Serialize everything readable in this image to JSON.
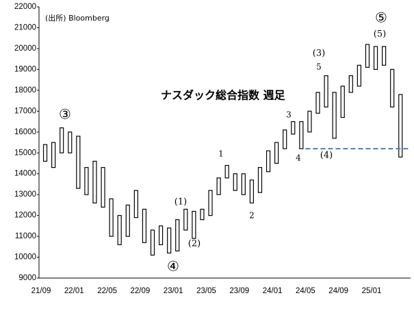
{
  "chart_data": {
    "type": "range_bar",
    "title": "ナスダック総合指数 週足",
    "source": "(出所) Bloomberg",
    "categories": [
      "21/09",
      null,
      null,
      null,
      "22/01",
      null,
      null,
      null,
      "22/05",
      null,
      null,
      null,
      "22/09",
      null,
      null,
      null,
      "23/01",
      null,
      null,
      null,
      "23/05",
      null,
      null,
      null,
      "23/09",
      null,
      null,
      null,
      "24/01",
      null,
      null,
      null,
      "24/05",
      null,
      null,
      null,
      "24/09",
      null,
      null,
      null,
      "25/01",
      null,
      null,
      null
    ],
    "series": [
      {
        "name": "high",
        "color": "#000000",
        "values": [
          15400,
          15500,
          16200,
          16000,
          15800,
          14300,
          14600,
          14300,
          12800,
          12000,
          12500,
          13200,
          12300,
          11300,
          11500,
          11400,
          11800,
          12300,
          12200,
          12300,
          13200,
          13800,
          14400,
          14000,
          14000,
          13700,
          14300,
          15100,
          15500,
          16100,
          16500,
          16500,
          17000,
          17900,
          18700,
          17900,
          18200,
          18700,
          19200,
          20200,
          20100,
          20100,
          19000,
          17800
        ]
      },
      {
        "name": "low",
        "color": "#000000",
        "values": [
          14600,
          14300,
          15000,
          15000,
          13300,
          13000,
          12600,
          12400,
          11000,
          10600,
          11000,
          11900,
          10700,
          10100,
          10600,
          10200,
          10300,
          11300,
          10900,
          11800,
          12000,
          13000,
          13800,
          13200,
          13000,
          12600,
          13100,
          14100,
          14500,
          15200,
          15900,
          15200,
          16000,
          16900,
          17200,
          15700,
          16700,
          17900,
          18200,
          19100,
          19000,
          19200,
          17200,
          14800
        ]
      }
    ],
    "ylim": [
      9000,
      22000
    ],
    "yticks": [
      9000,
      10000,
      11000,
      12000,
      13000,
      14000,
      15000,
      16000,
      17000,
      18000,
      19000,
      20000,
      21000,
      22000
    ],
    "reference_line": {
      "value": 15200,
      "color": "#4a7ebb"
    },
    "annotations": [
      "③",
      "④",
      "⑤",
      "(5)",
      "(3)",
      "5",
      "3",
      "4",
      "(4)",
      "1",
      "2",
      "(1)",
      "(2)"
    ]
  }
}
